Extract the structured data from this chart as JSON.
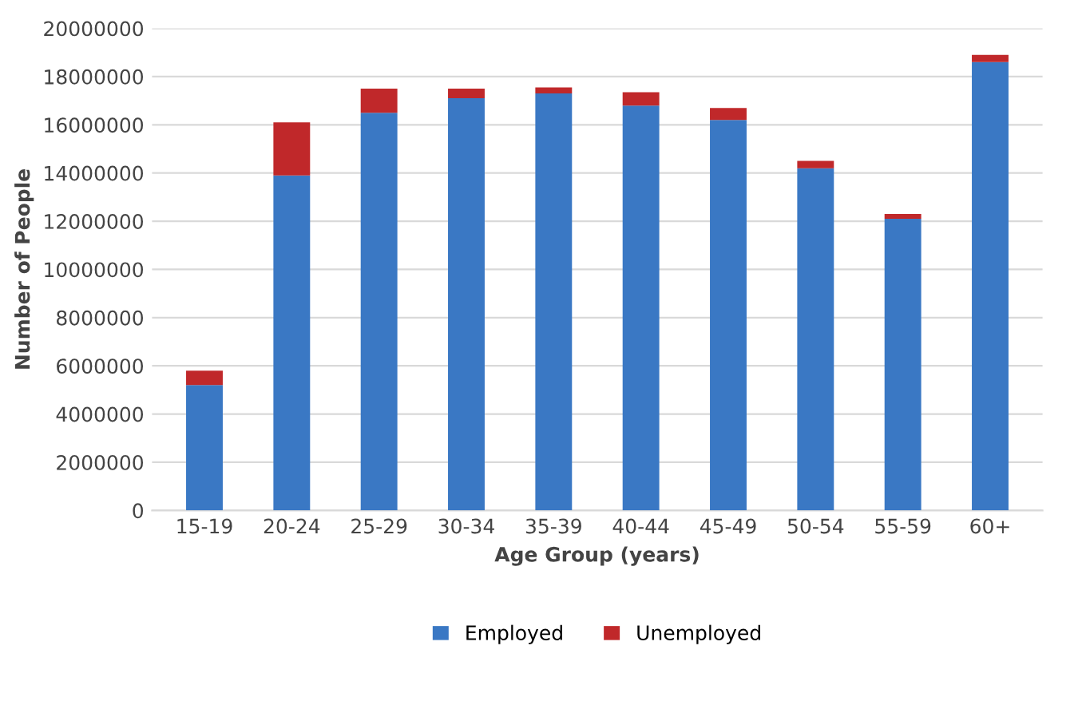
{
  "chart_data": {
    "type": "bar",
    "stacked": true,
    "xlabel": "Age Group (years)",
    "ylabel": "Number of People",
    "categories": [
      "15-19",
      "20-24",
      "25-29",
      "30-34",
      "35-39",
      "40-44",
      "45-49",
      "50-54",
      "55-59",
      "60+"
    ],
    "series": [
      {
        "name": "Employed",
        "color": "#3a78c4",
        "values": [
          5200000,
          13900000,
          16500000,
          17100000,
          17300000,
          16800000,
          16200000,
          14200000,
          12100000,
          18600000
        ]
      },
      {
        "name": "Unemployed",
        "color": "#c0282a",
        "values": [
          600000,
          2200000,
          1000000,
          400000,
          250000,
          550000,
          500000,
          300000,
          200000,
          300000
        ]
      }
    ],
    "ylim": [
      0,
      20000000
    ],
    "yticks": [
      0,
      2000000,
      4000000,
      6000000,
      8000000,
      10000000,
      12000000,
      14000000,
      16000000,
      18000000,
      20000000
    ],
    "grid": "y",
    "legend": "bottom"
  }
}
